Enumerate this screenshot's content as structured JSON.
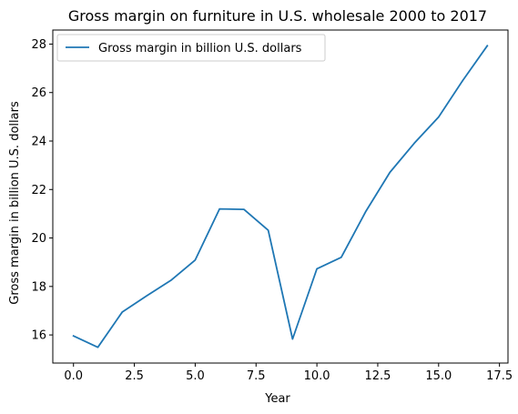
{
  "chart_data": {
    "type": "line",
    "title": "Gross margin on furniture in U.S. wholesale 2000 to 2017",
    "xlabel": "Year",
    "ylabel": "Gross margin in billion U.S. dollars",
    "xlim": [
      -0.85,
      17.85
    ],
    "ylim": [
      14.84,
      28.58
    ],
    "x_ticks": [
      0.0,
      2.5,
      5.0,
      7.5,
      10.0,
      12.5,
      15.0,
      17.5
    ],
    "x_tick_labels": [
      "0.0",
      "2.5",
      "5.0",
      "7.5",
      "10.0",
      "12.5",
      "15.0",
      "17.5"
    ],
    "y_ticks": [
      16,
      18,
      20,
      22,
      24,
      26,
      28
    ],
    "y_tick_labels": [
      "16",
      "18",
      "20",
      "22",
      "24",
      "26",
      "28"
    ],
    "grid": false,
    "legend_position": "upper-left",
    "series": [
      {
        "name": "Gross margin in billion U.S. dollars",
        "color": "#1f77b4",
        "x": [
          0,
          1,
          2,
          3,
          4,
          5,
          6,
          7,
          8,
          9,
          10,
          11,
          12,
          13,
          14,
          15,
          16,
          17
        ],
        "y": [
          15.96,
          15.49,
          16.94,
          17.61,
          18.25,
          19.09,
          21.2,
          21.18,
          20.32,
          15.83,
          18.73,
          19.2,
          21.08,
          22.71,
          23.91,
          24.99,
          26.51,
          27.93
        ]
      }
    ]
  }
}
